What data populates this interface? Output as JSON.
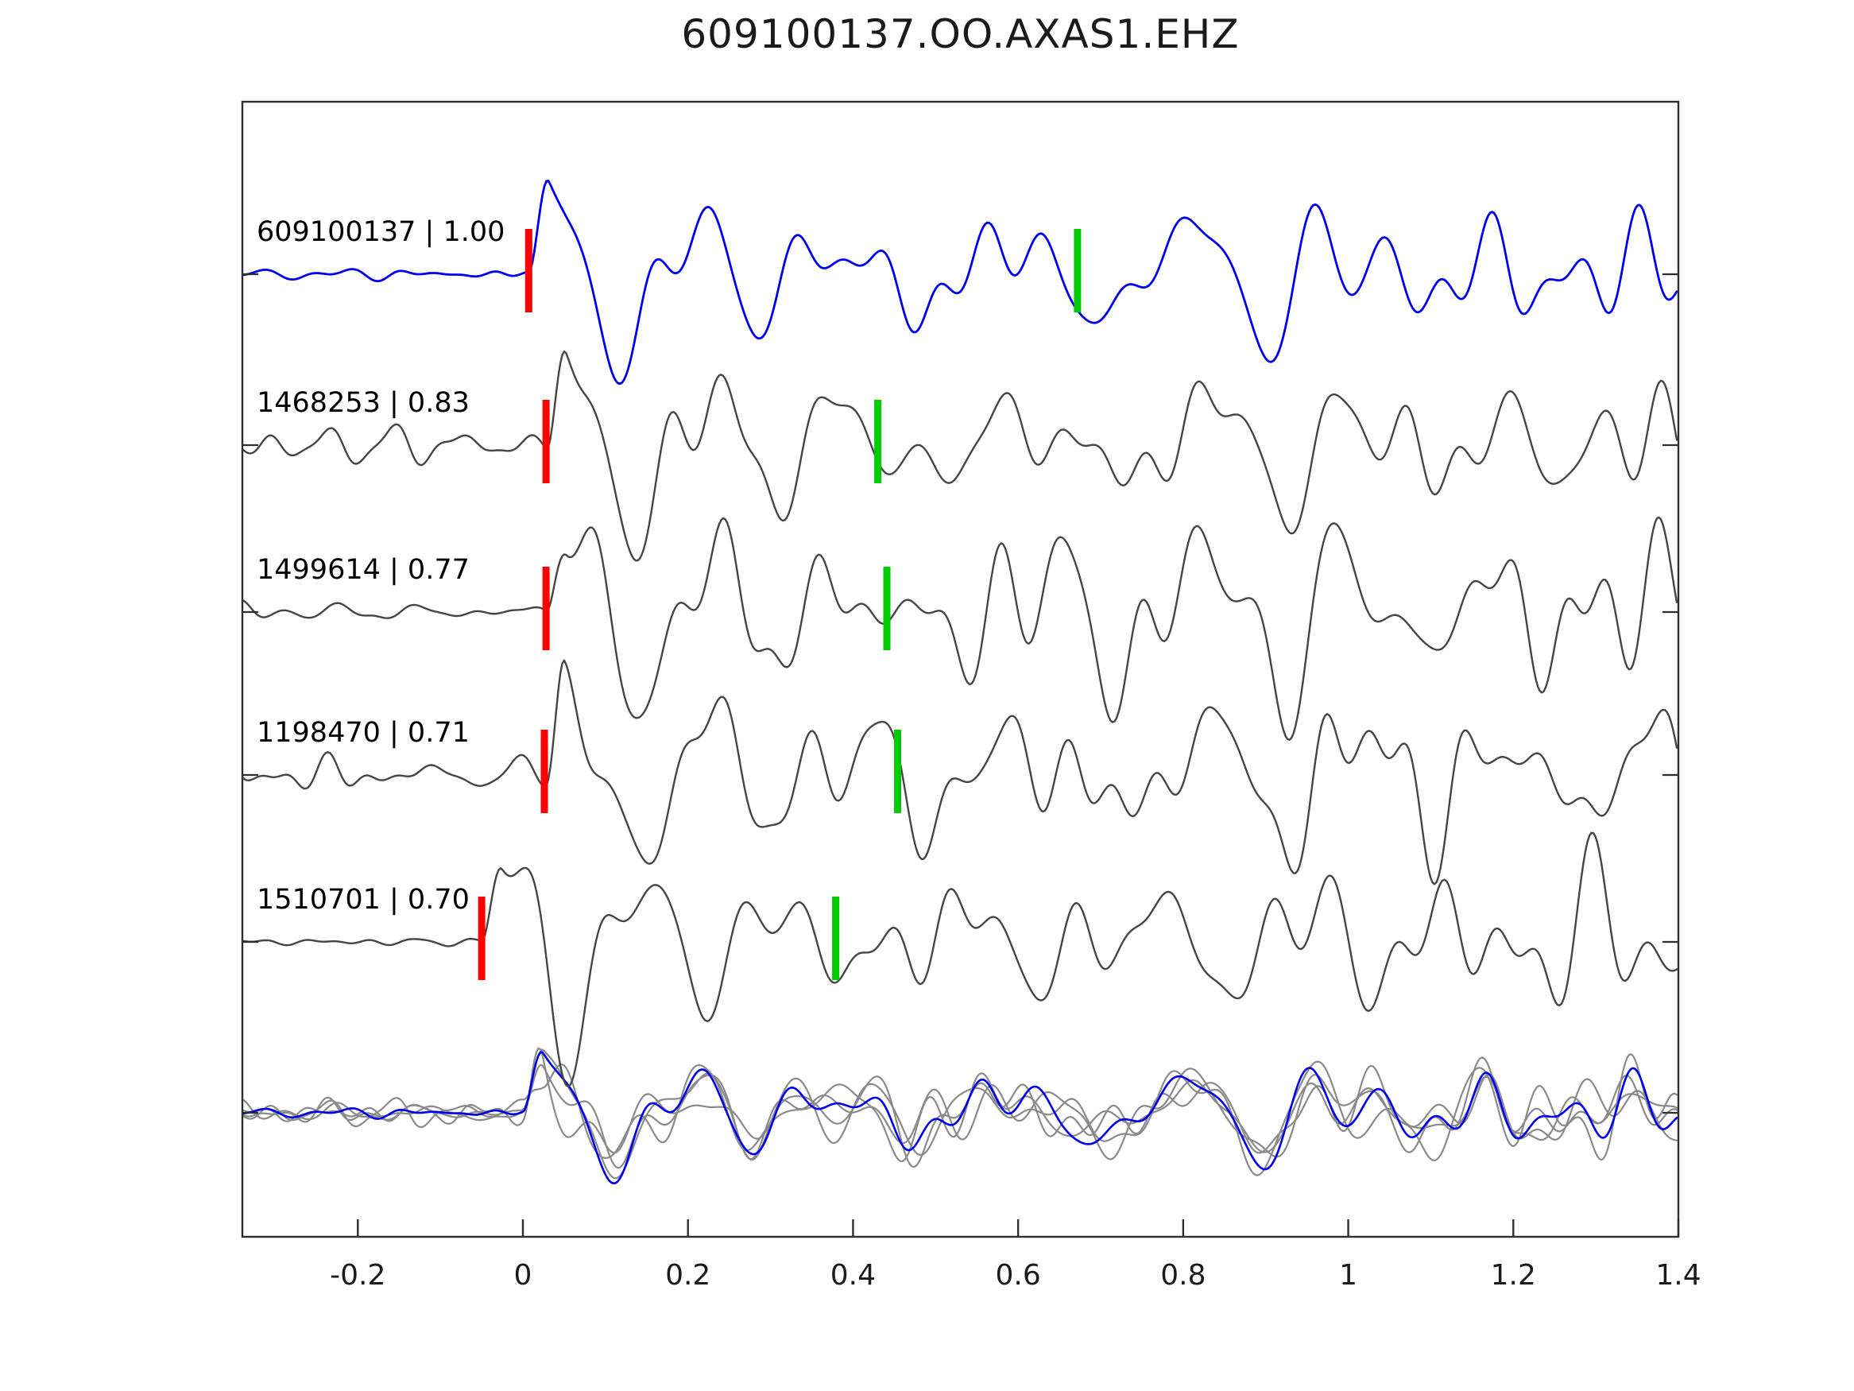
{
  "chart_data": {
    "type": "line",
    "title": "609100137.OO.AXAS1.EHZ",
    "xlabel": "",
    "ylabel": "",
    "xlim": [
      -0.34,
      1.4
    ],
    "xticks": [
      "-0.2",
      "0",
      "0.2",
      "0.4",
      "0.6",
      "0.8",
      "1",
      "1.2",
      "1.4"
    ],
    "xtick_values": [
      -0.2,
      0,
      0.2,
      0.4,
      0.6,
      0.8,
      1.0,
      1.2,
      1.4
    ],
    "grid": false,
    "legend": "none",
    "layout": "6 stacked rows: 5 labeled waveform traces + 1 overlay row of all traces superimposed",
    "colors": {
      "target_trace": "#0000ee",
      "template_trace": "#454545",
      "overlay_gray": "#8a8a8a",
      "pick_marker": "#ff0000",
      "assoc_marker": "#00cc00",
      "axis": "#2e2e2e",
      "text": "#000000"
    },
    "traces": [
      {
        "id": "609100137",
        "correlation": "1.00",
        "label": "609100137 | 1.00",
        "role": "target",
        "pick_time": 0.007,
        "assoc_time": 0.672,
        "pre_amp": 8,
        "main_amp": 90,
        "seed": 7,
        "seed2": 107
      },
      {
        "id": "1468253",
        "correlation": "0.83",
        "label": "1468253 | 0.83",
        "role": "template",
        "pick_time": 0.028,
        "assoc_time": 0.43,
        "pre_amp": 25,
        "main_amp": 96,
        "seed": 13,
        "seed2": 113
      },
      {
        "id": "1499614",
        "correlation": "0.77",
        "label": "1499614 | 0.77",
        "role": "template",
        "pick_time": 0.028,
        "assoc_time": 0.441,
        "pre_amp": 16,
        "main_amp": 106,
        "seed": 29,
        "seed2": 129
      },
      {
        "id": "1198470",
        "correlation": "0.71",
        "label": "1198470 | 0.71",
        "role": "template",
        "pick_time": 0.026,
        "assoc_time": 0.454,
        "pre_amp": 27,
        "main_amp": 101,
        "seed": 41,
        "seed2": 141
      },
      {
        "id": "1510701",
        "correlation": "0.70",
        "label": "1510701 | 0.70",
        "role": "template",
        "pick_time": -0.05,
        "assoc_time": 0.379,
        "pre_amp": 7,
        "main_amp": 92,
        "seed": 53,
        "seed2": 153
      }
    ],
    "overlay": {
      "description": "all 5 traces aligned on pick and superimposed; target in blue on top",
      "gray_pre_amp": 18,
      "blue_pre_amp": 7,
      "main_amp": 58
    },
    "markers": {
      "pick_marker_name": "red pick bar",
      "assoc_marker_name": "green association bar"
    }
  }
}
